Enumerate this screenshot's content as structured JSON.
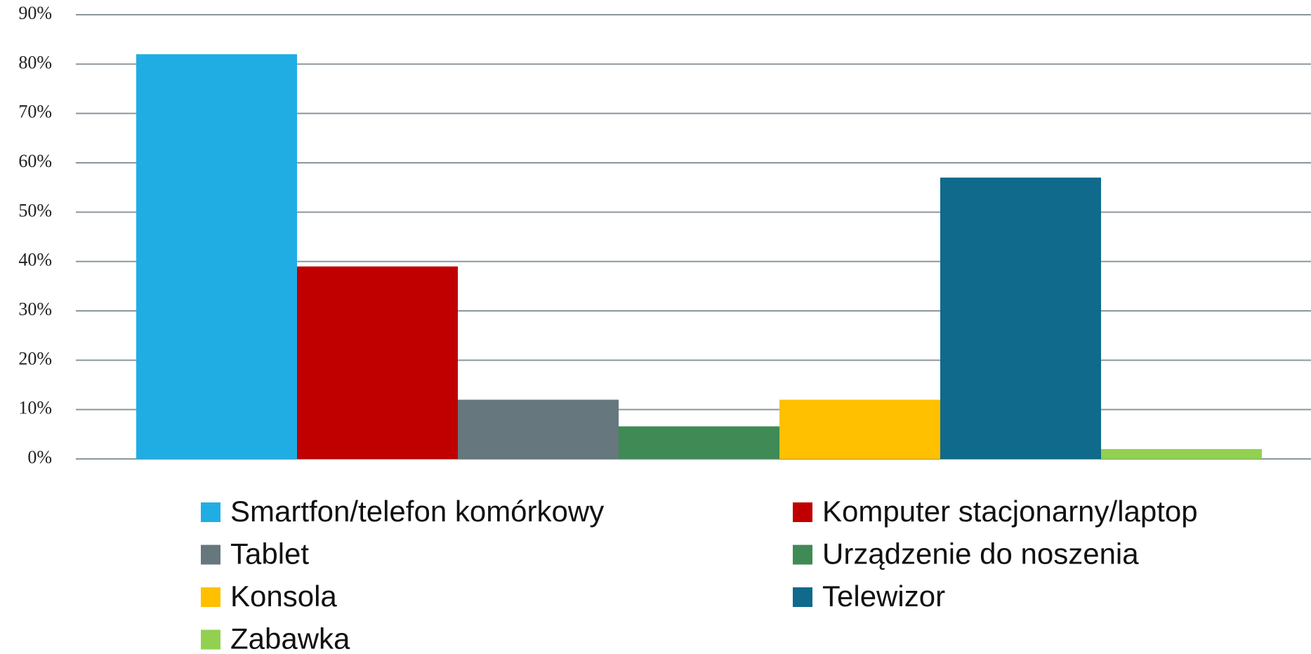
{
  "chart_data": {
    "type": "bar",
    "series": [
      {
        "name": "Smartfon/telefon komórkowy",
        "color": "#1fade4",
        "values": [
          82
        ]
      },
      {
        "name": "Komputer stacjonarny/laptop",
        "color": "#c00000",
        "values": [
          39
        ]
      },
      {
        "name": "Tablet",
        "color": "#66777e",
        "values": [
          12
        ]
      },
      {
        "name": "Urządzenie do noszenia",
        "color": "#3f8a55",
        "values": [
          6.6
        ]
      },
      {
        "name": "Konsola",
        "color": "#ffc000",
        "values": [
          12
        ]
      },
      {
        "name": "Telewizor",
        "color": "#0f6a8c",
        "values": [
          57
        ]
      },
      {
        "name": "Zabawka",
        "color": "#92d050",
        "values": [
          2
        ]
      }
    ],
    "ylim": [
      0,
      90
    ],
    "yticks": [
      {
        "value": 0,
        "label": "0%"
      },
      {
        "value": 10,
        "label": "10%"
      },
      {
        "value": 20,
        "label": "20%"
      },
      {
        "value": 30,
        "label": "30%"
      },
      {
        "value": 40,
        "label": "40%"
      },
      {
        "value": 50,
        "label": "50%"
      },
      {
        "value": 60,
        "label": "60%"
      },
      {
        "value": 70,
        "label": "70%"
      },
      {
        "value": 80,
        "label": "80%"
      },
      {
        "value": 90,
        "label": "90%"
      }
    ],
    "grid": true
  }
}
